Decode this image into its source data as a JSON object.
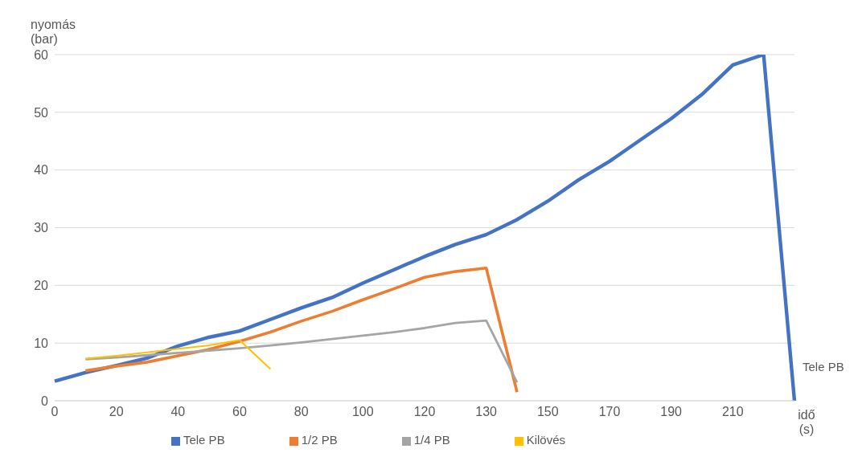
{
  "chart_data": {
    "type": "line",
    "categories": [
      "0",
      null,
      "20",
      null,
      "40",
      null,
      "60",
      null,
      "80",
      null,
      "100",
      null,
      "120",
      null,
      "130",
      null,
      "150",
      null,
      "170",
      null,
      "190",
      null,
      "210",
      null,
      null
    ],
    "series": [
      {
        "name": "Tele PB",
        "color": "#4472c4",
        "values": [
          3.4,
          4.9,
          6.1,
          7.4,
          9.5,
          11.0,
          12.1,
          14.1,
          16.1,
          17.9,
          20.4,
          22.7,
          25.0,
          27.1,
          28.8,
          31.4,
          34.6,
          38.3,
          41.5,
          45.2,
          48.9,
          53.1,
          58.2,
          60,
          0
        ]
      },
      {
        "name": "1/2 PB",
        "color": "#ed7d31",
        "values": [
          null,
          5.2,
          6.0,
          6.7,
          7.8,
          8.9,
          10.3,
          11.9,
          13.8,
          15.5,
          17.5,
          19.4,
          21.4,
          22.4,
          23.0,
          1.5,
          null,
          null,
          null,
          null,
          null,
          null,
          null,
          null,
          null
        ]
      },
      {
        "name": "1/4 PB",
        "color": "#a5a5a5",
        "values": [
          null,
          7.2,
          7.5,
          7.9,
          8.3,
          8.7,
          9.1,
          9.6,
          10.1,
          10.7,
          11.3,
          11.9,
          12.6,
          13.5,
          13.9,
          3.2,
          null,
          null,
          null,
          null,
          null,
          null,
          null,
          null,
          null
        ]
      },
      {
        "name": "Kilövés",
        "color": "#ffc000",
        "values": [
          null,
          7.3,
          7.8,
          8.4,
          9.0,
          9.6,
          10.5,
          5.5,
          null,
          null,
          null,
          null,
          null,
          null,
          null,
          null,
          null,
          null,
          null,
          null,
          null,
          null,
          null,
          null,
          null
        ]
      }
    ],
    "ylabel": "nyomás (bar)",
    "xlabel": "idő (s)",
    "ylim": [
      0,
      60
    ],
    "yticks": [
      0,
      10,
      20,
      30,
      40,
      50,
      60
    ],
    "grid": "y",
    "legend": "bottom",
    "marker": "none",
    "line_style": "solid",
    "annotations": [
      "Tele PB"
    ]
  }
}
